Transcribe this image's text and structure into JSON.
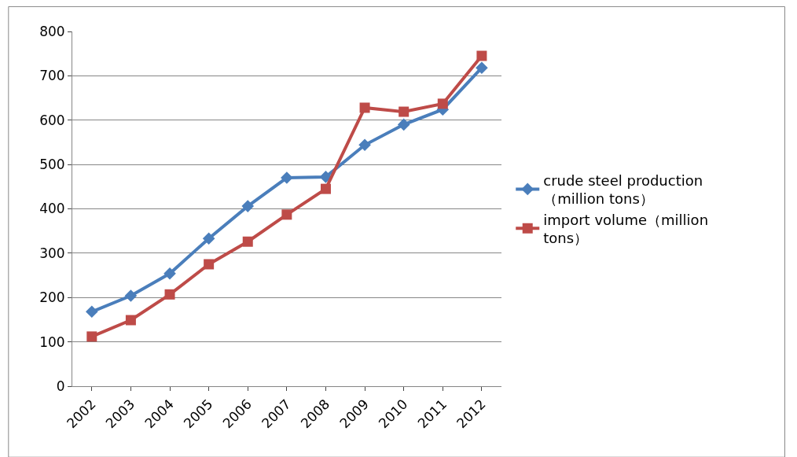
{
  "chart_data": {
    "type": "line",
    "categories": [
      "2002",
      "2003",
      "2004",
      "2005",
      "2006",
      "2007",
      "2008",
      "2009",
      "2010",
      "2011",
      "2012"
    ],
    "series": [
      {
        "name": "crude steel production（million tons）",
        "color": "#4a7ebb",
        "marker": "diamond",
        "values": [
          168,
          204,
          254,
          333,
          406,
          470,
          472,
          544,
          590,
          624,
          718
        ]
      },
      {
        "name": "import volume（million tons）",
        "color": "#be4b48",
        "marker": "square",
        "values": [
          112,
          149,
          207,
          275,
          326,
          387,
          445,
          628,
          619,
          637,
          745
        ]
      }
    ],
    "ylim": [
      0,
      800
    ],
    "yticks": [
      0,
      100,
      200,
      300,
      400,
      500,
      600,
      700,
      800
    ],
    "grid": "y",
    "legend": "right",
    "line_style": "solid"
  }
}
